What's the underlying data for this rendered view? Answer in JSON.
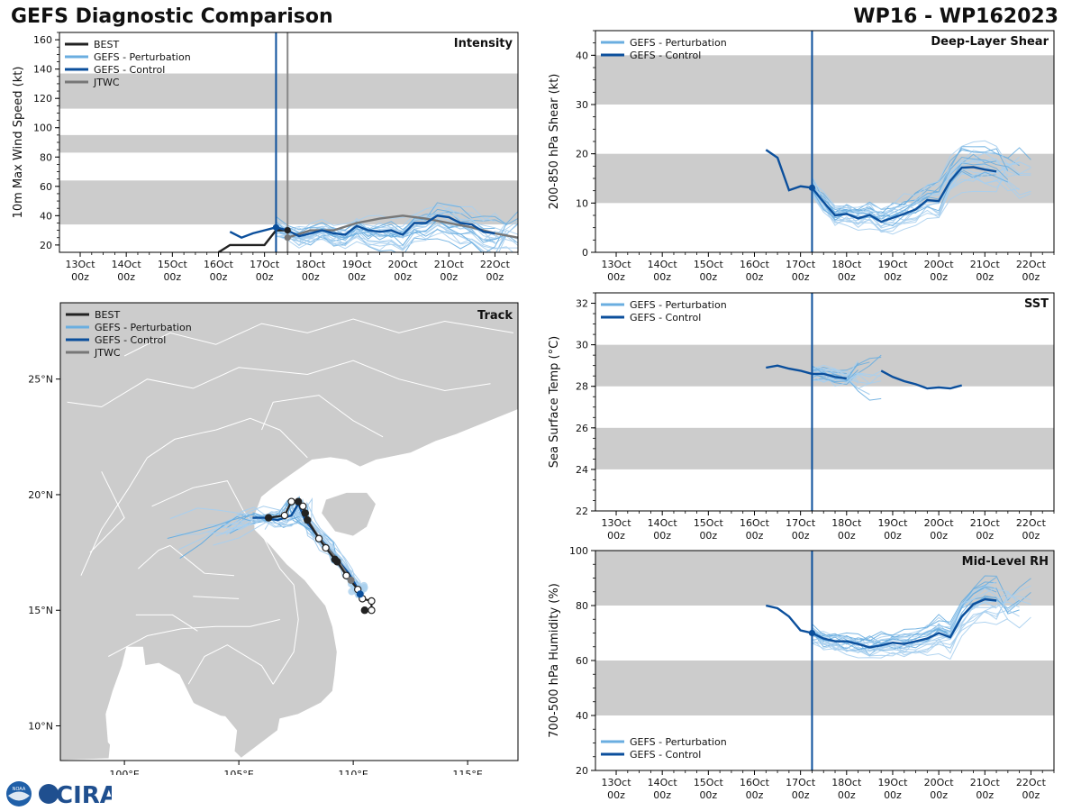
{
  "header": {
    "title_left": "GEFS Diagnostic Comparison",
    "title_right": "WP16 - WP162023"
  },
  "logos": {
    "noaa": "NOAA",
    "cira": "CIRA"
  },
  "styles": {
    "best": "#222222",
    "pert": "#6aaee0",
    "pert_thin": "#a9cfee",
    "control": "#0b4f9c",
    "jtwc": "#777777",
    "band": "#cccccc",
    "land": "#cccccc",
    "vline_control": "#0b4f9c",
    "vline_jtwc": "#888888"
  },
  "time_axis": {
    "tick_days": [
      0,
      1,
      2,
      3,
      4,
      5,
      6,
      7,
      8,
      9
    ],
    "tick_labels": [
      [
        "13Oct",
        "00z"
      ],
      [
        "14Oct",
        "00z"
      ],
      [
        "15Oct",
        "00z"
      ],
      [
        "16Oct",
        "00z"
      ],
      [
        "17Oct",
        "00z"
      ],
      [
        "18Oct",
        "00z"
      ],
      [
        "19Oct",
        "00z"
      ],
      [
        "20Oct",
        "00z"
      ],
      [
        "21Oct",
        "00z"
      ],
      [
        "22Oct",
        "00z"
      ]
    ],
    "range": [
      -0.45,
      9.5
    ]
  },
  "chart_data": [
    {
      "id": "intensity",
      "type": "line",
      "title": "Intensity",
      "ylabel": "10m Max Wind Speed (kt)",
      "ylim": [
        15,
        165
      ],
      "yticks": [
        20,
        40,
        60,
        80,
        100,
        120,
        140,
        160
      ],
      "bands": [
        [
          34,
          64
        ],
        [
          83,
          95
        ],
        [
          113,
          137
        ]
      ],
      "legend": [
        "BEST",
        "GEFS - Perturbation",
        "GEFS - Control",
        "JTWC"
      ],
      "vlines": [
        {
          "x": 4.25,
          "kind": "control"
        },
        {
          "x": 4.5,
          "kind": "jtwc"
        }
      ],
      "series": [
        {
          "name": "BEST",
          "kind": "best",
          "x": [
            3.0,
            3.25,
            3.5,
            3.75,
            4.0,
            4.25,
            4.5
          ],
          "y": [
            15,
            20,
            20,
            20,
            20,
            30,
            30
          ]
        },
        {
          "name": "JTWC",
          "kind": "jtwc",
          "x": [
            4.5,
            5.0,
            5.5,
            6.0,
            6.5,
            7.0,
            7.5,
            8.0,
            8.5,
            9.0,
            9.5
          ],
          "y": [
            25,
            30,
            30,
            35,
            38,
            40,
            38,
            35,
            32,
            28,
            25
          ]
        },
        {
          "name": "GEFS - Control",
          "kind": "control",
          "x": [
            3.25,
            3.5,
            3.75,
            4.0,
            4.25,
            4.5,
            4.75,
            5.0,
            5.25,
            5.5,
            5.75,
            6.0,
            6.25,
            6.5,
            6.75,
            7.0,
            7.25,
            7.5,
            7.75,
            8.0,
            8.25,
            8.5,
            8.75,
            9.0
          ],
          "y": [
            29,
            25,
            28,
            30,
            32,
            30,
            26,
            28,
            30,
            28,
            27,
            33,
            30,
            29,
            30,
            27,
            35,
            35,
            40,
            39,
            35,
            34,
            29,
            28
          ]
        }
      ],
      "markers": [
        {
          "x": 4.25,
          "y": 32,
          "kind": "control"
        },
        {
          "x": 4.5,
          "y": 25,
          "kind": "jtwc"
        },
        {
          "x": 4.5,
          "y": 30,
          "kind": "best"
        }
      ],
      "legend_pos": "top-left",
      "title_pos": "top-right"
    },
    {
      "id": "shear",
      "type": "line",
      "title": "Deep-Layer Shear",
      "ylabel": "200-850 hPa Shear (kt)",
      "ylim": [
        0,
        45
      ],
      "yticks": [
        0,
        10,
        20,
        30,
        40
      ],
      "bands": [
        [
          10,
          20
        ],
        [
          30,
          40
        ]
      ],
      "legend": [
        "GEFS - Perturbation",
        "GEFS - Control"
      ],
      "vlines": [
        {
          "x": 4.25,
          "kind": "control"
        }
      ],
      "series": [
        {
          "name": "GEFS - Control",
          "kind": "control",
          "x": [
            3.25,
            3.5,
            3.75,
            4.0,
            4.25,
            4.5,
            4.75,
            5.0,
            5.25,
            5.5,
            5.75,
            6.0,
            6.25,
            6.5,
            6.75,
            7.0,
            7.25,
            7.5,
            7.75,
            8.0,
            8.25
          ],
          "y": [
            20.8,
            19.2,
            12.6,
            13.4,
            13.1,
            10.2,
            7.5,
            7.8,
            6.9,
            7.6,
            6.2,
            7.0,
            7.8,
            8.7,
            10.6,
            10.4,
            14.5,
            17.2,
            17.3,
            16.8,
            16.4
          ]
        }
      ],
      "markers": [
        {
          "x": 4.25,
          "y": 13.1,
          "kind": "control"
        }
      ],
      "legend_pos": "top-left",
      "title_pos": "top-right"
    },
    {
      "id": "sst",
      "type": "line",
      "title": "SST",
      "ylabel": "Sea Surface Temp (°C)",
      "ylim": [
        22,
        32.5
      ],
      "yticks": [
        22,
        24,
        26,
        28,
        30,
        32
      ],
      "bands": [
        [
          24,
          26
        ],
        [
          28,
          30
        ]
      ],
      "legend": [
        "GEFS - Perturbation",
        "GEFS - Control"
      ],
      "vlines": [
        {
          "x": 4.25,
          "kind": "control"
        }
      ],
      "series": [
        {
          "name": "GEFS - Control",
          "kind": "control",
          "x": [
            3.25,
            3.5,
            3.75,
            4.0,
            4.25,
            4.5,
            4.75,
            5.0
          ],
          "y": [
            28.9,
            29.0,
            28.85,
            28.75,
            28.6,
            28.6,
            28.45,
            28.38
          ]
        },
        {
          "name": "GEFS - Control",
          "kind": "control",
          "x": [
            5.75,
            6.0,
            6.25,
            6.5,
            6.75,
            7.0,
            7.25,
            7.5
          ],
          "y": [
            28.75,
            28.45,
            28.25,
            28.1,
            27.9,
            27.95,
            27.9,
            28.05
          ]
        }
      ],
      "markers": [],
      "legend_pos": "top-left",
      "title_pos": "top-right"
    },
    {
      "id": "rh",
      "type": "line",
      "title": "Mid-Level RH",
      "ylabel": "700-500 hPa Humidity (%)",
      "ylim": [
        20,
        100
      ],
      "yticks": [
        20,
        40,
        60,
        80,
        100
      ],
      "bands": [
        [
          40,
          60
        ],
        [
          80,
          100
        ]
      ],
      "legend": [
        "GEFS - Perturbation",
        "GEFS - Control"
      ],
      "vlines": [
        {
          "x": 4.25,
          "kind": "control"
        }
      ],
      "series": [
        {
          "name": "GEFS - Control",
          "kind": "control",
          "x": [
            3.25,
            3.5,
            3.75,
            4.0,
            4.25,
            4.5,
            4.75,
            5.0,
            5.25,
            5.5,
            5.75,
            6.0,
            6.25,
            6.5,
            6.75,
            7.0,
            7.25,
            7.5,
            7.75,
            8.0,
            8.25
          ],
          "y": [
            80,
            79,
            76,
            71,
            70,
            68,
            67,
            67,
            66,
            64.8,
            65.5,
            66.5,
            66,
            67,
            68,
            70,
            68.5,
            76,
            80.5,
            82.3,
            81.8
          ]
        }
      ],
      "markers": [
        {
          "x": 4.25,
          "y": 70,
          "kind": "control"
        }
      ],
      "legend_pos": "bottom-left",
      "title_pos": "top-right"
    },
    {
      "id": "track",
      "type": "map",
      "title": "Track",
      "legend": [
        "BEST",
        "GEFS - Perturbation",
        "GEFS - Control",
        "JTWC"
      ],
      "lon_range": [
        97.2,
        117.2
      ],
      "lat_range": [
        8.5,
        28.3
      ],
      "lon_ticks": [
        100,
        105,
        110,
        115
      ],
      "lon_tick_labels": [
        "100°E",
        "105°E",
        "110°E",
        "115°E"
      ],
      "lat_ticks": [
        10,
        15,
        20,
        25
      ],
      "lat_tick_labels": [
        "10°N",
        "15°N",
        "20°N",
        "25°N"
      ],
      "best": {
        "lon": [
          110.5,
          110.8,
          110.8,
          110.4,
          110.2,
          109.7,
          109.3,
          109.2,
          108.8,
          108.5,
          108.0,
          107.9,
          107.8,
          107.6,
          107.3,
          107.0,
          106.3
        ],
        "lat": [
          15.0,
          15.0,
          15.4,
          15.5,
          15.9,
          16.5,
          17.1,
          17.2,
          17.7,
          18.1,
          18.9,
          19.2,
          19.5,
          19.7,
          19.7,
          19.1,
          19.0
        ],
        "filled": [
          1,
          0,
          0,
          0,
          0,
          0,
          1,
          1,
          0,
          0,
          1,
          1,
          0,
          1,
          0,
          0,
          1
        ]
      },
      "control": {
        "lon": [
          110.3,
          110.1,
          109.8,
          109.3,
          108.8,
          108.3,
          107.9,
          107.6,
          107.3,
          106.7,
          106.1,
          105.6
        ],
        "lat": [
          15.7,
          16.1,
          16.6,
          17.2,
          17.8,
          18.4,
          18.9,
          19.6,
          19.1,
          18.9,
          19.0,
          19.0
        ]
      },
      "jtwc": {
        "lon": [
          109.9,
          109.3,
          108.6,
          108.0,
          107.7
        ],
        "lat": [
          16.3,
          17.2,
          18.0,
          18.9,
          19.6
        ]
      },
      "markers": [
        {
          "lon": 110.3,
          "lat": 15.7,
          "kind": "control"
        },
        {
          "lon": 109.9,
          "lat": 16.3,
          "kind": "jtwc"
        }
      ],
      "legend_pos": "top-left",
      "title_pos": "top-right"
    }
  ]
}
